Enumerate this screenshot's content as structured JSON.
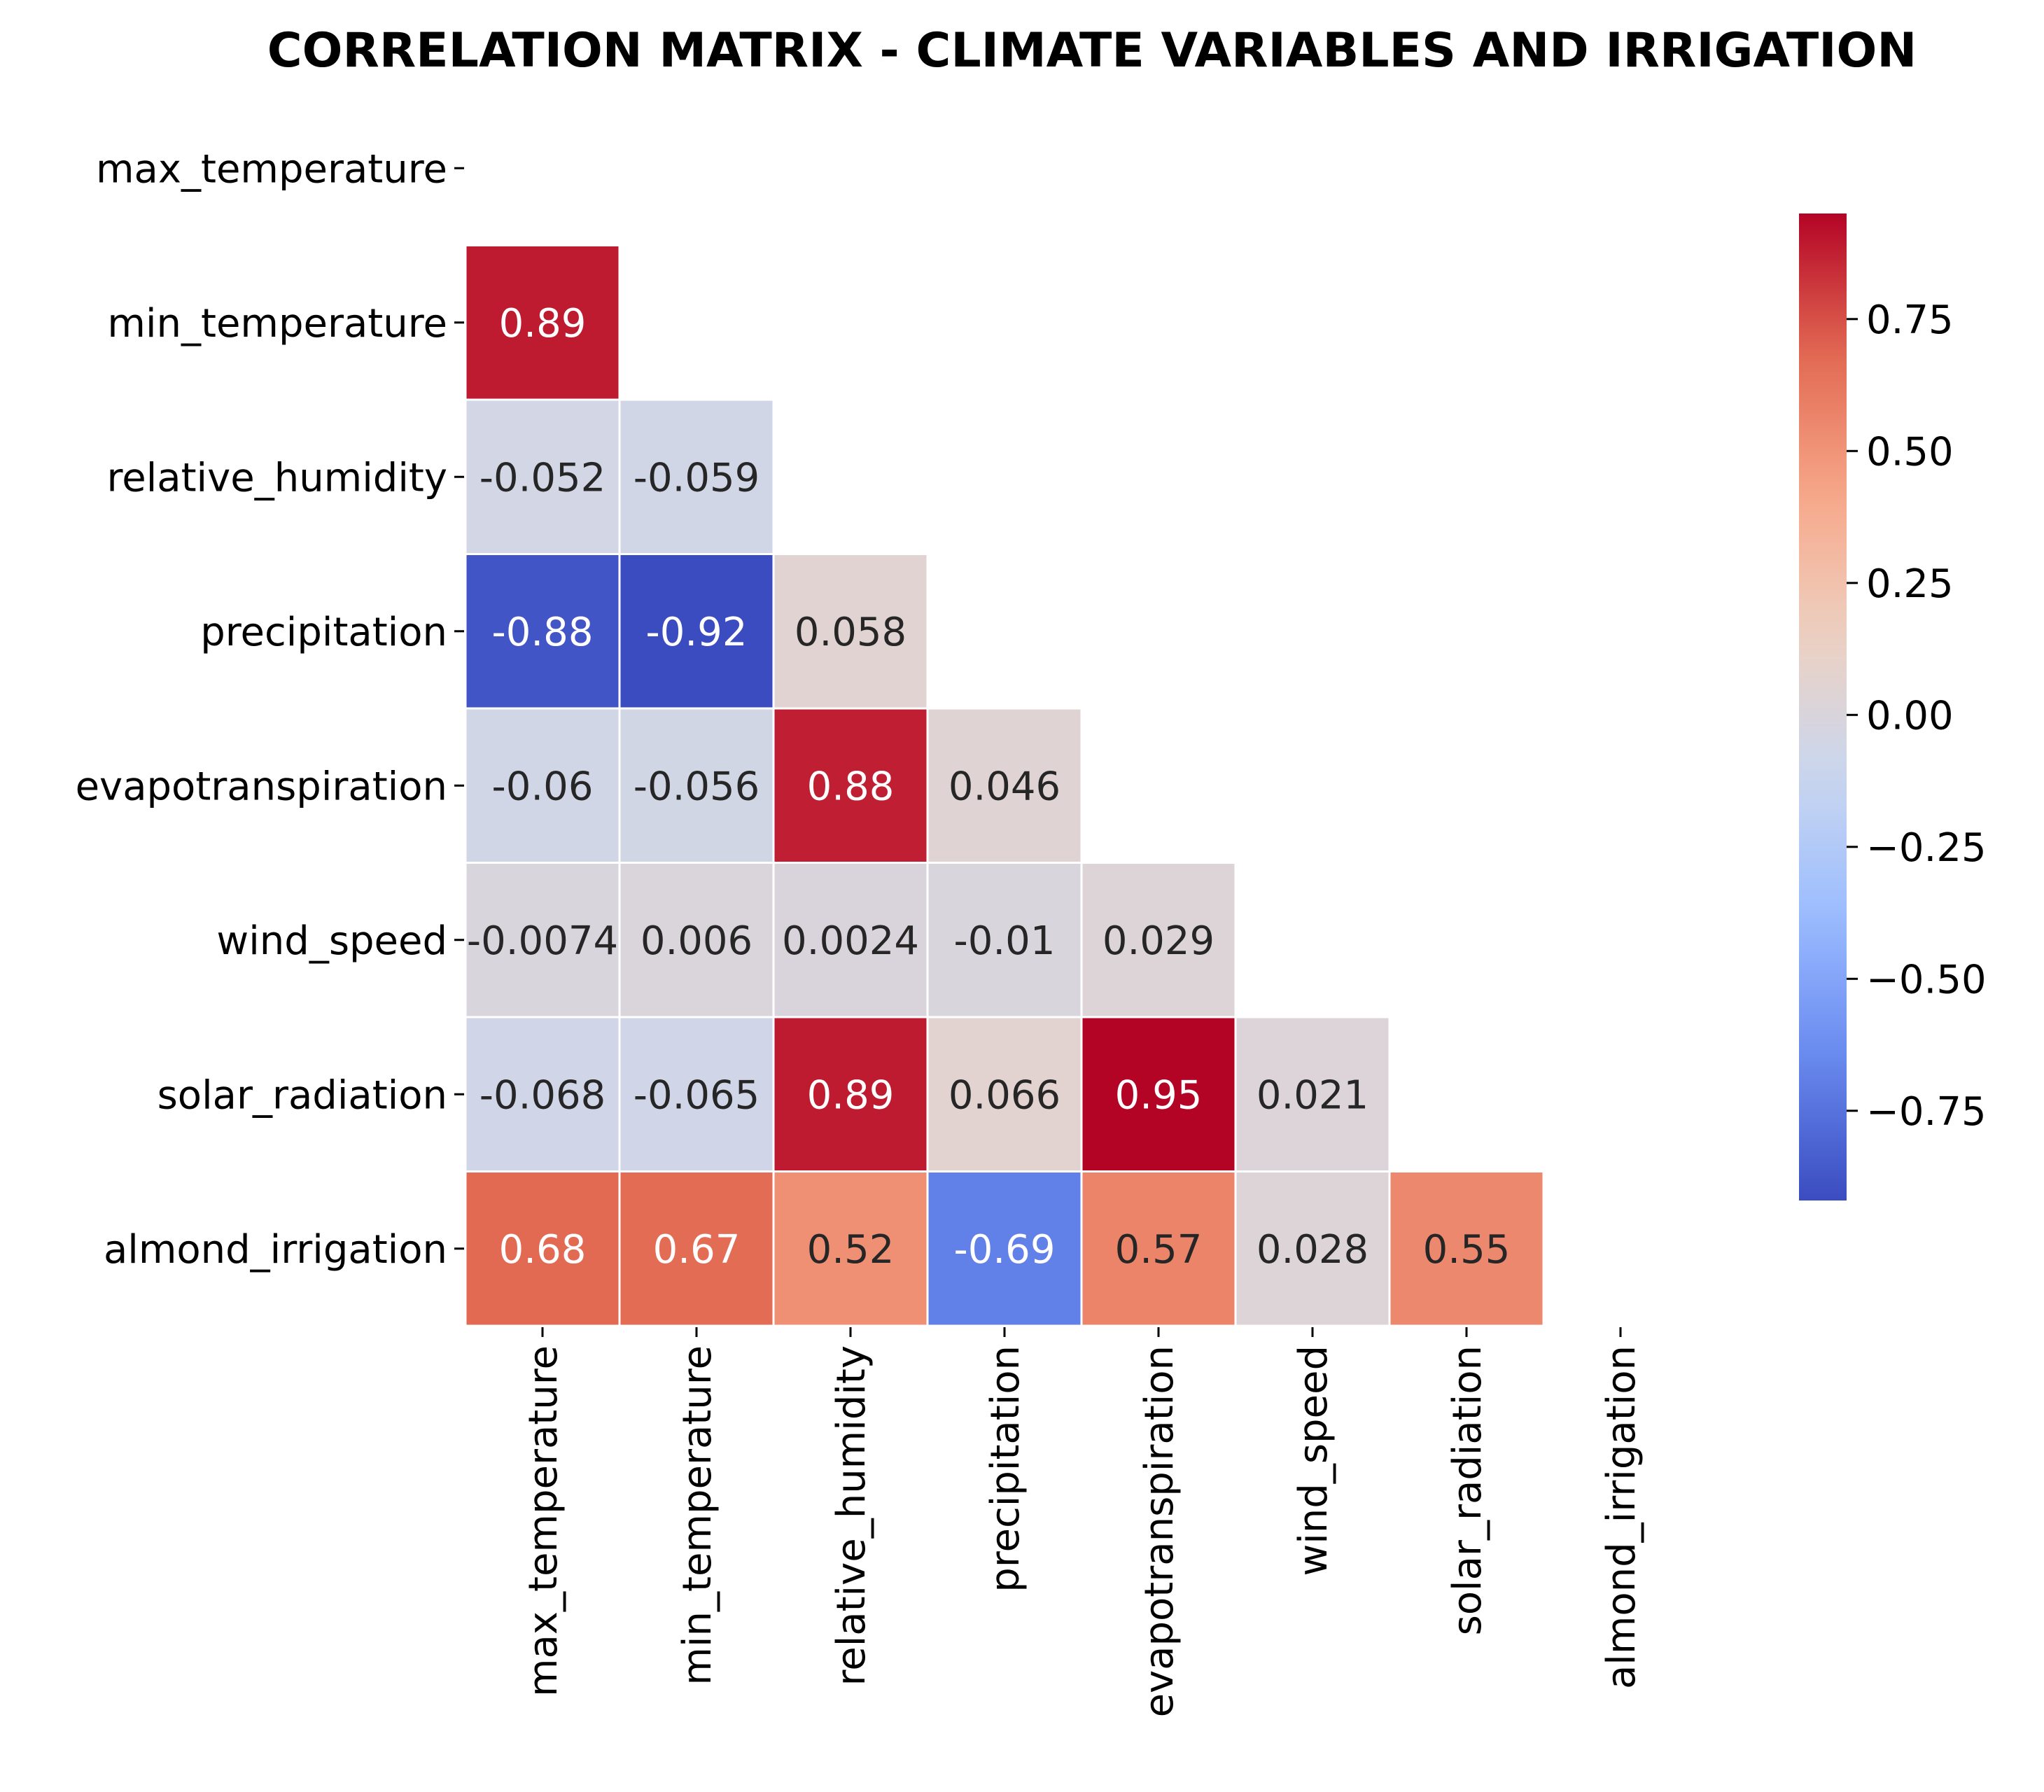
{
  "chart_data": {
    "type": "heatmap",
    "title": "CORRELATION MATRIX - CLIMATE VARIABLES AND IRRIGATION",
    "variables": [
      "max_temperature",
      "min_temperature",
      "relative_humidity",
      "precipitation",
      "evapotranspiration",
      "wind_speed",
      "solar_radiation",
      "almond_irrigation"
    ],
    "mask": "upper-triangle-including-diagonal",
    "cells": [
      {
        "row": 1,
        "col": 0,
        "value": 0.89,
        "label": "0.89"
      },
      {
        "row": 2,
        "col": 0,
        "value": -0.052,
        "label": "-0.052"
      },
      {
        "row": 2,
        "col": 1,
        "value": -0.059,
        "label": "-0.059"
      },
      {
        "row": 3,
        "col": 0,
        "value": -0.88,
        "label": "-0.88"
      },
      {
        "row": 3,
        "col": 1,
        "value": -0.92,
        "label": "-0.92"
      },
      {
        "row": 3,
        "col": 2,
        "value": 0.058,
        "label": "0.058"
      },
      {
        "row": 4,
        "col": 0,
        "value": -0.06,
        "label": "-0.06"
      },
      {
        "row": 4,
        "col": 1,
        "value": -0.056,
        "label": "-0.056"
      },
      {
        "row": 4,
        "col": 2,
        "value": 0.88,
        "label": "0.88"
      },
      {
        "row": 4,
        "col": 3,
        "value": 0.046,
        "label": "0.046"
      },
      {
        "row": 5,
        "col": 0,
        "value": -0.0074,
        "label": "-0.0074"
      },
      {
        "row": 5,
        "col": 1,
        "value": 0.006,
        "label": "0.006"
      },
      {
        "row": 5,
        "col": 2,
        "value": 0.0024,
        "label": "0.0024"
      },
      {
        "row": 5,
        "col": 3,
        "value": -0.01,
        "label": "-0.01"
      },
      {
        "row": 5,
        "col": 4,
        "value": 0.029,
        "label": "0.029"
      },
      {
        "row": 6,
        "col": 0,
        "value": -0.068,
        "label": "-0.068"
      },
      {
        "row": 6,
        "col": 1,
        "value": -0.065,
        "label": "-0.065"
      },
      {
        "row": 6,
        "col": 2,
        "value": 0.89,
        "label": "0.89"
      },
      {
        "row": 6,
        "col": 3,
        "value": 0.066,
        "label": "0.066"
      },
      {
        "row": 6,
        "col": 4,
        "value": 0.95,
        "label": "0.95"
      },
      {
        "row": 6,
        "col": 5,
        "value": 0.021,
        "label": "0.021"
      },
      {
        "row": 7,
        "col": 0,
        "value": 0.68,
        "label": "0.68"
      },
      {
        "row": 7,
        "col": 1,
        "value": 0.67,
        "label": "0.67"
      },
      {
        "row": 7,
        "col": 2,
        "value": 0.52,
        "label": "0.52"
      },
      {
        "row": 7,
        "col": 3,
        "value": -0.69,
        "label": "-0.69"
      },
      {
        "row": 7,
        "col": 4,
        "value": 0.57,
        "label": "0.57"
      },
      {
        "row": 7,
        "col": 5,
        "value": 0.028,
        "label": "0.028"
      },
      {
        "row": 7,
        "col": 6,
        "value": 0.55,
        "label": "0.55"
      }
    ],
    "colorbar": {
      "cmap": "coolwarm",
      "vmin": -0.92,
      "vmax": 0.95,
      "ticks": [
        0.75,
        0.5,
        0.25,
        0.0,
        -0.25,
        -0.5,
        -0.75
      ],
      "tick_labels": [
        "0.75",
        "0.50",
        "0.25",
        "0.00",
        "−0.25",
        "−0.50",
        "−0.75"
      ],
      "location": "right"
    },
    "colors": [
      "#3b4cc0",
      "#6788ee",
      "#9abbff",
      "#c9d7f0",
      "#edd1c2",
      "#f7a889",
      "#e26952",
      "#b40426"
    ]
  }
}
